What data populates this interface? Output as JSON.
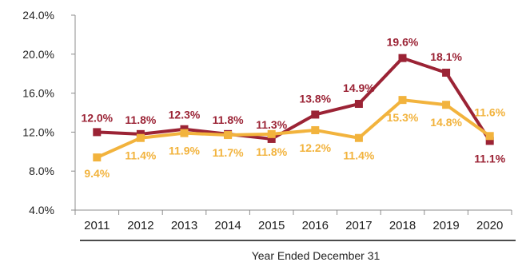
{
  "chart_data": {
    "type": "line",
    "title": "",
    "xlabel": "Year Ended December 31",
    "ylabel": "",
    "categories": [
      "2011",
      "2012",
      "2013",
      "2014",
      "2015",
      "2016",
      "2017",
      "2018",
      "2019",
      "2020"
    ],
    "ylim": [
      4.0,
      24.0
    ],
    "yticks": [
      "4.0%",
      "8.0%",
      "12.0%",
      "16.0%",
      "20.0%",
      "24.0%"
    ],
    "ytick_values": [
      4,
      8,
      12,
      16,
      20,
      24
    ],
    "grid": false,
    "legend": "none",
    "series": [
      {
        "color": "#9b2335",
        "marker": "square",
        "values": [
          12.0,
          11.8,
          12.3,
          11.8,
          11.3,
          13.8,
          14.9,
          19.6,
          18.1,
          11.1
        ],
        "labels": [
          "12.0%",
          "11.8%",
          "12.3%",
          "11.8%",
          "11.3%",
          "13.8%",
          "14.9%",
          "19.6%",
          "18.1%",
          "11.1%"
        ]
      },
      {
        "color": "#f2b33d",
        "marker": "square",
        "values": [
          9.4,
          11.4,
          11.9,
          11.7,
          11.8,
          12.2,
          11.4,
          15.3,
          14.8,
          11.6
        ],
        "labels": [
          "9.4%",
          "11.4%",
          "11.9%",
          "11.7%",
          "11.8%",
          "12.2%",
          "11.4%",
          "15.3%",
          "14.8%",
          "11.6%"
        ]
      }
    ]
  }
}
